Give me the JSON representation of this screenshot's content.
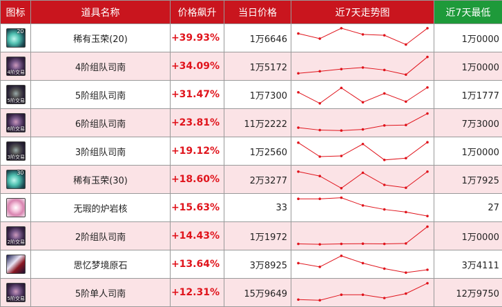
{
  "headers": {
    "icon": "图标",
    "name": "道具名称",
    "rise": "价格飙升",
    "price": "当日价格",
    "trend": "近7天走势图",
    "low": "近7天最低"
  },
  "colors": {
    "header_red": "#c9151e",
    "header_green": "#1e9a3a",
    "rise_red": "#e0141c",
    "row_alt": "#fbe3e6",
    "trend_line": "#e0141c"
  },
  "rows": [
    {
      "icon": "gem-icon",
      "icon_num": "20",
      "icon_tag": "",
      "name": "稀有玉荣(20)",
      "rise": "+39.93%",
      "price": "1万6646",
      "low": "1万0000",
      "trend": [
        0.3,
        0.53,
        0.06,
        0.34,
        0.38,
        0.8,
        0.06
      ]
    },
    {
      "icon": "compass-icon",
      "icon_num": "",
      "icon_tag": "4阶交易",
      "name": "4阶组队司南",
      "rise": "+34.09%",
      "price": "1万5172",
      "low": "1万0000",
      "trend": [
        0.82,
        0.73,
        0.63,
        0.56,
        0.67,
        0.88,
        0.08
      ]
    },
    {
      "icon": "compass-icon",
      "icon_num": "",
      "icon_tag": "5阶交易",
      "name": "5阶组队司南",
      "rise": "+31.47%",
      "price": "1万7300",
      "low": "1万1777",
      "trend": [
        0.4,
        0.9,
        0.2,
        0.85,
        0.45,
        0.82,
        0.18
      ]
    },
    {
      "icon": "compass-icon",
      "icon_num": "",
      "icon_tag": "6阶交易",
      "name": "6阶组队司南",
      "rise": "+23.81%",
      "price": "11万2222",
      "low": "7万3000",
      "trend": [
        0.72,
        0.83,
        0.85,
        0.8,
        0.62,
        0.6,
        0.08
      ]
    },
    {
      "icon": "compass-icon",
      "icon_num": "",
      "icon_tag": "3阶交易",
      "name": "3阶组队司南",
      "rise": "+19.12%",
      "price": "1万2560",
      "low": "1万0000",
      "trend": [
        0.12,
        0.75,
        0.72,
        0.18,
        0.9,
        0.82,
        0.1
      ]
    },
    {
      "icon": "gem-icon",
      "icon_num": "30",
      "icon_tag": "",
      "name": "稀有玉荣(30)",
      "rise": "+18.60%",
      "price": "2万3277",
      "low": "1万7925",
      "trend": [
        0.15,
        0.35,
        0.9,
        0.2,
        0.75,
        0.88,
        0.15
      ]
    },
    {
      "icon": "core-icon",
      "icon_num": "",
      "icon_tag": "",
      "name": "无瑕的炉岩核",
      "rise": "+15.63%",
      "price": "33",
      "low": "27",
      "trend": [
        0.1,
        0.1,
        0.05,
        0.4,
        0.58,
        0.7,
        0.88
      ]
    },
    {
      "icon": "compass-icon",
      "icon_num": "",
      "icon_tag": "2阶交易",
      "name": "2阶组队司南",
      "rise": "+14.43%",
      "price": "1万1972",
      "low": "1万0000",
      "trend": [
        0.86,
        0.88,
        0.86,
        0.85,
        0.86,
        0.84,
        0.08
      ]
    },
    {
      "icon": "stone-icon",
      "icon_num": "",
      "icon_tag": "",
      "name": "思忆梦境原石",
      "rise": "+13.64%",
      "price": "3万8925",
      "low": "3万4111",
      "trend": [
        0.45,
        0.62,
        0.12,
        0.45,
        0.7,
        0.88,
        0.75
      ]
    },
    {
      "icon": "compass-icon",
      "icon_num": "",
      "icon_tag": "5阶交易",
      "name": "5阶单人司南",
      "rise": "+12.31%",
      "price": "15万9649",
      "low": "12万9750",
      "trend": [
        0.82,
        0.85,
        0.6,
        0.6,
        0.75,
        0.55,
        0.08
      ]
    }
  ]
}
